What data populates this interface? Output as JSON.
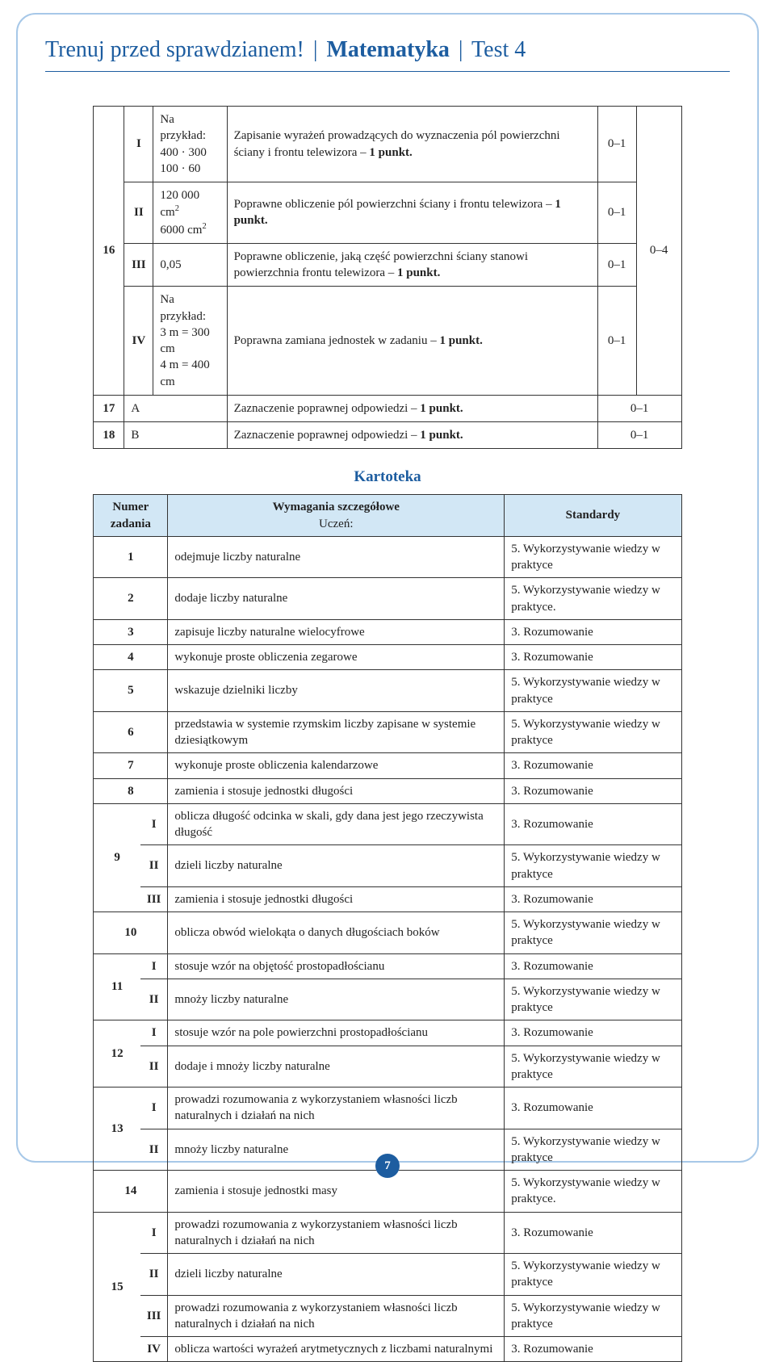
{
  "header": {
    "prefix": "Trenuj przed sprawdzianem!",
    "bold": "Matematyka",
    "suffix": "Test 4"
  },
  "scoring": {
    "r16": {
      "num": "16",
      "I": {
        "a": "Na przykład:\n400 · 300\n100 · 60",
        "b_pre": "Zapisanie wyrażeń prowadzących do wyznaczenia pól powierzchni ściany i frontu telewizora – ",
        "b_bold": "1 punkt.",
        "pts": "0–1"
      },
      "II": {
        "a": "120 000 cm²\n6000 cm²",
        "b_pre": "Poprawne obliczenie pól powierzchni ściany i frontu telewizora – ",
        "b_bold": "1 punkt.",
        "pts": "0–1"
      },
      "III": {
        "a": "0,05",
        "b_pre": "Poprawne obliczenie, jaką część powierzchni ściany stanowi powierzchnia frontu telewizora – ",
        "b_bold": "1 punkt.",
        "pts": "0–1"
      },
      "IV": {
        "a": "Na przykład:\n3 m = 300 cm\n4 m = 400 cm",
        "b_pre": "Poprawna zamiana jednostek w zadaniu – ",
        "b_bold": "1 punkt.",
        "pts": "0–1"
      },
      "range": "0–4"
    },
    "r17": {
      "num": "17",
      "a": "A",
      "b_pre": "Zaznaczenie poprawnej odpowiedzi – ",
      "b_bold": "1 punkt.",
      "pts": "0–1"
    },
    "r18": {
      "num": "18",
      "a": "B",
      "b_pre": "Zaznaczenie poprawnej odpowiedzi – ",
      "b_bold": "1 punkt.",
      "pts": "0–1"
    }
  },
  "kartoteka_title": "Kartoteka",
  "kartoteka": {
    "headers": {
      "num": "Numer zadania",
      "req": "Wymagania szczegółowe",
      "req_sub": "Uczeń:",
      "std": "Standardy"
    },
    "rows": [
      {
        "n": "1",
        "req": "odejmuje liczby naturalne",
        "std": "5. Wykorzystywanie wiedzy w praktyce"
      },
      {
        "n": "2",
        "req": "dodaje liczby naturalne",
        "std": "5. Wykorzystywanie wiedzy w praktyce."
      },
      {
        "n": "3",
        "req": "zapisuje liczby naturalne wielocyfrowe",
        "std": "3. Rozumowanie"
      },
      {
        "n": "4",
        "req": "wykonuje proste obliczenia zegarowe",
        "std": "3. Rozumowanie"
      },
      {
        "n": "5",
        "req": "wskazuje dzielniki liczby",
        "std": "5. Wykorzystywanie wiedzy w praktyce"
      },
      {
        "n": "6",
        "req": "przedstawia w systemie rzymskim liczby zapisane w systemie dziesiątkowym",
        "std": "5. Wykorzystywanie wiedzy w praktyce"
      },
      {
        "n": "7",
        "req": "wykonuje proste obliczenia kalendarzowe",
        "std": "3. Rozumowanie"
      },
      {
        "n": "8",
        "req": "zamienia i stosuje jednostki długości",
        "std": "3. Rozumowanie"
      }
    ],
    "r9": {
      "n": "9",
      "I": {
        "req": "oblicza długość odcinka w skali, gdy dana jest jego rzeczywista długość",
        "std": "3. Rozumowanie"
      },
      "II": {
        "req": "dzieli liczby naturalne",
        "std": "5. Wykorzystywanie wiedzy w praktyce"
      },
      "III": {
        "req": "zamienia i stosuje jednostki długości",
        "std": "3. Rozumowanie"
      }
    },
    "r10": {
      "n": "10",
      "req": "oblicza obwód wielokąta o danych długościach boków",
      "std": "5. Wykorzystywanie wiedzy w praktyce"
    },
    "r11": {
      "n": "11",
      "I": {
        "req": "stosuje wzór na objętość prostopadłościanu",
        "std": "3. Rozumowanie"
      },
      "II": {
        "req": "mnoży liczby naturalne",
        "std": "5. Wykorzystywanie wiedzy w praktyce"
      }
    },
    "r12": {
      "n": "12",
      "I": {
        "req": "stosuje wzór na pole powierzchni prostopadłościanu",
        "std": "3. Rozumowanie"
      },
      "II": {
        "req": "dodaje i mnoży liczby naturalne",
        "std": "5. Wykorzystywanie wiedzy w praktyce"
      }
    },
    "r13": {
      "n": "13",
      "I": {
        "req": "prowadzi rozumowania z wykorzystaniem własności liczb naturalnych i działań na nich",
        "std": "3. Rozumowanie"
      },
      "II": {
        "req": "mnoży liczby naturalne",
        "std": "5. Wykorzystywanie wiedzy w praktyce"
      }
    },
    "r14": {
      "n": "14",
      "req": "zamienia i stosuje jednostki masy",
      "std": "5. Wykorzystywanie wiedzy w praktyce."
    },
    "r15": {
      "n": "15",
      "I": {
        "req": "prowadzi rozumowania z wykorzystaniem własności liczb naturalnych i działań na nich",
        "std": "3. Rozumowanie"
      },
      "II": {
        "req": "dzieli liczby naturalne",
        "std": "5. Wykorzystywanie wiedzy w praktyce"
      },
      "III": {
        "req": "prowadzi rozumowania z wykorzystaniem własności liczb naturalnych i działań na nich",
        "std": "5. Wykorzystywanie wiedzy w praktyce"
      },
      "IV": {
        "req": "oblicza wartości wyrażeń arytmetycznych z liczbami naturalnymi",
        "std": "3. Rozumowanie"
      }
    }
  },
  "page_number": "7"
}
